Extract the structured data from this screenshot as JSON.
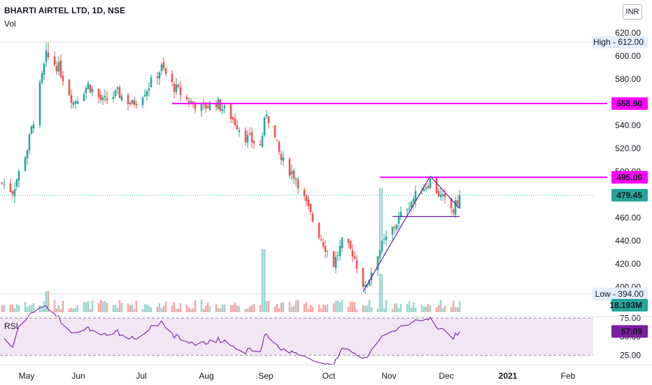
{
  "header": {
    "symbol_title": "BHARTI AIRTEL LTD, 1D, NSE",
    "volume_label": "Vol",
    "currency": "INR"
  },
  "rsi": {
    "label": "RSI",
    "value_label": "57.09",
    "value": 57.09,
    "levels": [
      "75.00",
      "50.00",
      "25.00"
    ],
    "color": "#7b1fa2",
    "band_color": "#f3e5f5"
  },
  "chart_data": {
    "type": "candlestick",
    "title": "BHARTI AIRTEL LTD, 1D, NSE",
    "price_axis": {
      "ticks": [
        "620.00",
        "600.00",
        "580.00",
        "560.00",
        "540.00",
        "520.00",
        "500.00",
        "480.00",
        "460.00",
        "440.00",
        "420.00",
        "400.00"
      ],
      "range": [
        380,
        626
      ]
    },
    "time_axis": {
      "ticks": [
        "May",
        "Jun",
        "Jul",
        "Aug",
        "Sep",
        "Oct",
        "Nov",
        "Dec",
        "2021",
        "Feb"
      ]
    },
    "markers": {
      "high": {
        "label": "High",
        "value": "612.00"
      },
      "low": {
        "label": "Low",
        "value": "394.00"
      },
      "last": {
        "value": "479.45"
      },
      "volume_last": {
        "value": "18.193M"
      }
    },
    "horizontal_lines": [
      {
        "value": 558.9,
        "label": "558.90",
        "color": "#ff00ff"
      },
      {
        "value": 495.0,
        "label": "495.00",
        "color": "#ff00ff"
      }
    ],
    "trendlines": [
      {
        "from": [
          "2020-10-19",
          396
        ],
        "to": [
          "2020-11-20",
          496
        ],
        "color": "#6a1b9a"
      },
      {
        "from": [
          "2020-11-20",
          496
        ],
        "to": [
          "2020-12-04",
          468
        ],
        "color": "#6a1b9a"
      },
      {
        "from": [
          "2020-11-02",
          461
        ],
        "to": [
          "2020-12-04",
          461
        ],
        "color": "#6a1b9a"
      }
    ],
    "colors": {
      "up": "#26a69a",
      "down": "#ef5350"
    },
    "approx_close_series": [
      {
        "date": "2020-04-30",
        "close": 490
      },
      {
        "date": "2020-05-05",
        "close": 483
      },
      {
        "date": "2020-05-12",
        "close": 520
      },
      {
        "date": "2020-05-15",
        "close": 545
      },
      {
        "date": "2020-05-21",
        "close": 600
      },
      {
        "date": "2020-05-27",
        "close": 590
      },
      {
        "date": "2020-06-03",
        "close": 560
      },
      {
        "date": "2020-06-10",
        "close": 575
      },
      {
        "date": "2020-06-17",
        "close": 560
      },
      {
        "date": "2020-06-24",
        "close": 568
      },
      {
        "date": "2020-07-01",
        "close": 558
      },
      {
        "date": "2020-07-08",
        "close": 572
      },
      {
        "date": "2020-07-15",
        "close": 590
      },
      {
        "date": "2020-07-20",
        "close": 575
      },
      {
        "date": "2020-07-27",
        "close": 562
      },
      {
        "date": "2020-08-03",
        "close": 555
      },
      {
        "date": "2020-08-10",
        "close": 560
      },
      {
        "date": "2020-08-17",
        "close": 548
      },
      {
        "date": "2020-08-24",
        "close": 530
      },
      {
        "date": "2020-08-31",
        "close": 522
      },
      {
        "date": "2020-09-03",
        "close": 552
      },
      {
        "date": "2020-09-10",
        "close": 510
      },
      {
        "date": "2020-09-17",
        "close": 495
      },
      {
        "date": "2020-09-24",
        "close": 462
      },
      {
        "date": "2020-09-29",
        "close": 442
      },
      {
        "date": "2020-10-05",
        "close": 420
      },
      {
        "date": "2020-10-09",
        "close": 438
      },
      {
        "date": "2020-10-14",
        "close": 430
      },
      {
        "date": "2020-10-20",
        "close": 398
      },
      {
        "date": "2020-10-26",
        "close": 430
      },
      {
        "date": "2020-11-02",
        "close": 450
      },
      {
        "date": "2020-11-09",
        "close": 470
      },
      {
        "date": "2020-11-16",
        "close": 485
      },
      {
        "date": "2020-11-20",
        "close": 492
      },
      {
        "date": "2020-11-25",
        "close": 478
      },
      {
        "date": "2020-12-01",
        "close": 466
      },
      {
        "date": "2020-12-04",
        "close": 479.45
      }
    ]
  }
}
